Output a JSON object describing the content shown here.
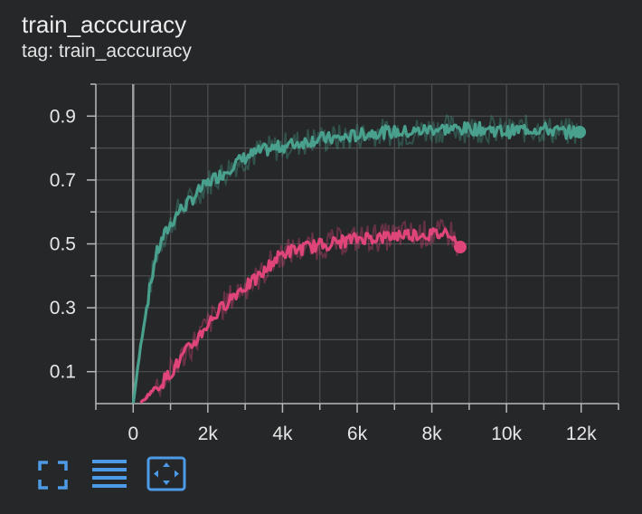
{
  "header": {
    "title": "train_acccuracy",
    "tag": "tag: train_acccuracy"
  },
  "toolbar": {
    "buttons": [
      {
        "icon": "fullscreen-icon"
      },
      {
        "icon": "data-list-icon"
      },
      {
        "icon": "fit-domain-icon"
      }
    ]
  },
  "colors": {
    "background": "#262729",
    "grid": "#4e4f52",
    "axis": "#b8b8b8",
    "zero_line": "#9c9c9c",
    "series_teal": "#48a08d",
    "series_pink": "#e0457a",
    "toolbar_icon": "#4d9be6"
  },
  "chart_data": {
    "type": "line",
    "title": "train_acccuracy",
    "subtitle": "tag: train_acccuracy",
    "xlabel": "",
    "ylabel": "",
    "xlim": [
      -1000,
      13000
    ],
    "ylim": [
      0,
      1.0
    ],
    "x_ticks": [
      0,
      2000,
      4000,
      6000,
      8000,
      10000,
      12000
    ],
    "x_tick_labels": [
      "0",
      "2k",
      "4k",
      "6k",
      "8k",
      "10k",
      "12k"
    ],
    "y_ticks": [
      0.1,
      0.3,
      0.5,
      0.7,
      0.9
    ],
    "y_tick_labels": [
      "0.1",
      "0.3",
      "0.5",
      "0.7",
      "0.9"
    ],
    "grid": true,
    "legend": "none",
    "series": [
      {
        "color": "#48a08d",
        "x": [
          0,
          200,
          400,
          600,
          800,
          1000,
          1200,
          1500,
          1800,
          2100,
          2400,
          2700,
          3000,
          3400,
          3800,
          4200,
          4600,
          5000,
          5500,
          6000,
          6500,
          7000,
          7500,
          8000,
          8500,
          9000,
          9500,
          10000,
          10500,
          11000,
          11500,
          11900
        ],
        "y": [
          0.0,
          0.18,
          0.33,
          0.46,
          0.52,
          0.56,
          0.6,
          0.63,
          0.67,
          0.7,
          0.72,
          0.75,
          0.77,
          0.79,
          0.8,
          0.81,
          0.82,
          0.83,
          0.83,
          0.84,
          0.85,
          0.85,
          0.85,
          0.86,
          0.86,
          0.86,
          0.86,
          0.85,
          0.86,
          0.86,
          0.85,
          0.85
        ],
        "end_value": 0.85
      },
      {
        "color": "#e0457a",
        "x": [
          200,
          500,
          800,
          1100,
          1400,
          1700,
          2000,
          2300,
          2600,
          2900,
          3200,
          3500,
          3700,
          3800,
          4000,
          4300,
          4700,
          5200,
          5700,
          6200,
          6700,
          7200,
          7700,
          8200,
          8500,
          8700
        ],
        "y": [
          0.0,
          0.04,
          0.07,
          0.11,
          0.16,
          0.2,
          0.25,
          0.29,
          0.33,
          0.36,
          0.38,
          0.41,
          0.44,
          0.45,
          0.47,
          0.48,
          0.49,
          0.5,
          0.51,
          0.52,
          0.52,
          0.53,
          0.53,
          0.53,
          0.54,
          0.49
        ],
        "end_value": 0.49
      }
    ]
  }
}
